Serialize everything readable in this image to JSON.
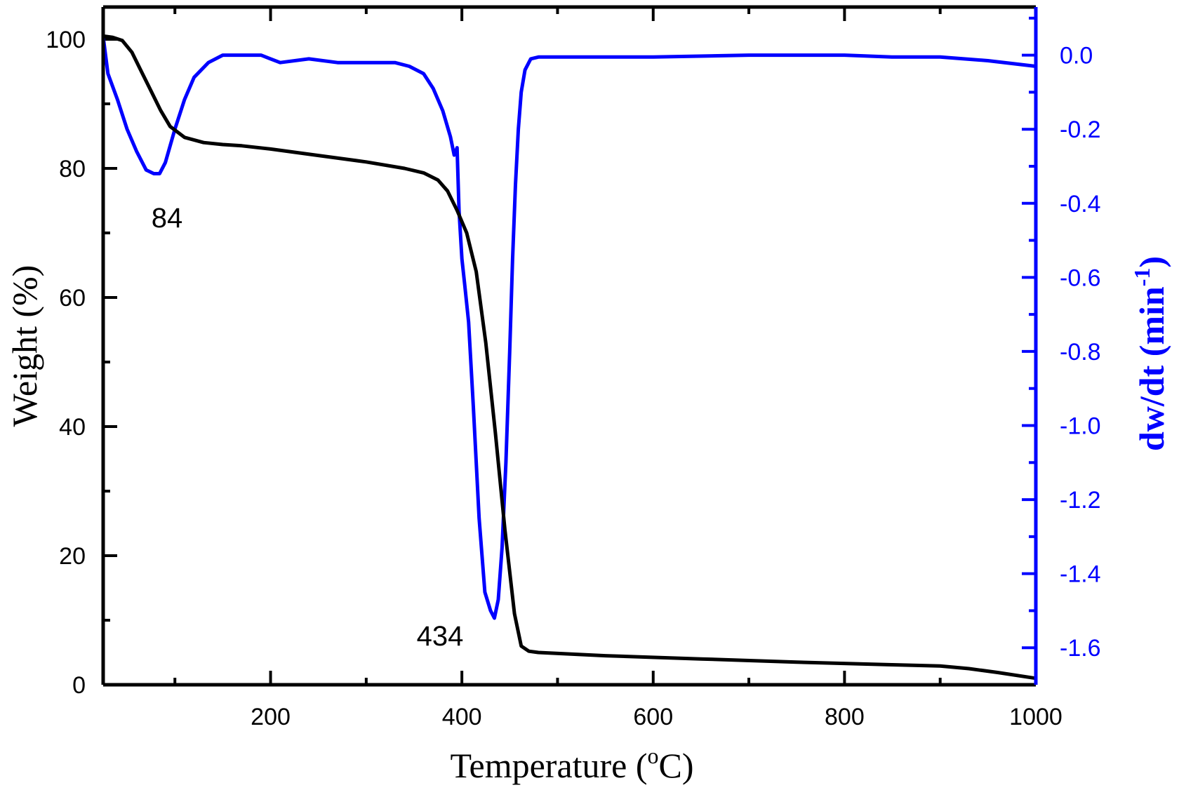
{
  "chart_data": {
    "type": "line",
    "title": "",
    "xlabel": "Temperature (",
    "xlabel_sup": "o",
    "xlabel_end": "C)",
    "ylabel_left": "Weight (%)",
    "ylabel_right": "dw/dt (min",
    "ylabel_right_sup": "-1",
    "ylabel_right_end": ")",
    "xlim": [
      25,
      1000
    ],
    "ylim_left": [
      0,
      105
    ],
    "ylim_right": [
      -1.7,
      0.13
    ],
    "grid": false,
    "x_ticks": [
      "200",
      "400",
      "600",
      "800",
      "1000"
    ],
    "x_tick_values": [
      200,
      400,
      600,
      800,
      1000
    ],
    "y_left_ticks": [
      "0",
      "20",
      "40",
      "60",
      "80",
      "100"
    ],
    "y_left_tick_values": [
      0,
      20,
      40,
      60,
      80,
      100
    ],
    "y_right_ticks": [
      "0.0",
      "-0.2",
      "-0.4",
      "-0.6",
      "-0.8",
      "-1.0",
      "-1.2",
      "-1.4",
      "-1.6"
    ],
    "y_right_tick_values": [
      0,
      -0.2,
      -0.4,
      -0.6,
      -0.8,
      -1.0,
      -1.2,
      -1.4,
      -1.6
    ],
    "colors": {
      "weight": "#000000",
      "dtg": "#0000ff"
    },
    "annotations": [
      {
        "text": "84",
        "x": 84,
        "series": "dtg"
      },
      {
        "text": "434",
        "x": 434,
        "series": "dtg"
      }
    ],
    "series": [
      {
        "axis": "left",
        "color": "#000000",
        "x": [
          25,
          35,
          45,
          55,
          65,
          75,
          85,
          95,
          110,
          130,
          150,
          170,
          200,
          250,
          300,
          340,
          360,
          375,
          385,
          395,
          405,
          415,
          425,
          435,
          445,
          455,
          462,
          470,
          480,
          550,
          650,
          750,
          850,
          900,
          930,
          960,
          1000
        ],
        "y": [
          100.5,
          100.3,
          99.8,
          98,
          95,
          92,
          89,
          86.5,
          84.8,
          84,
          83.7,
          83.5,
          83,
          82,
          81,
          80,
          79.3,
          78.2,
          76.5,
          73.5,
          70,
          64,
          53,
          39,
          24,
          11,
          6,
          5.2,
          5,
          4.5,
          4,
          3.5,
          3.1,
          2.9,
          2.5,
          1.9,
          1
        ]
      },
      {
        "axis": "right",
        "color": "#0000ff",
        "x": [
          25,
          30,
          40,
          50,
          60,
          70,
          78,
          84,
          90,
          100,
          110,
          120,
          135,
          150,
          170,
          190,
          210,
          240,
          270,
          300,
          330,
          345,
          360,
          370,
          380,
          388,
          392,
          395,
          397,
          400,
          403,
          407,
          412,
          418,
          424,
          430,
          434,
          438,
          442,
          446,
          450,
          453,
          456,
          459,
          462,
          466,
          472,
          480,
          520,
          600,
          700,
          800,
          850,
          900,
          950,
          1000
        ],
        "y": [
          0.05,
          -0.05,
          -0.12,
          -0.2,
          -0.26,
          -0.31,
          -0.32,
          -0.32,
          -0.29,
          -0.2,
          -0.12,
          -0.06,
          -0.02,
          0,
          0.0,
          0,
          -0.02,
          -0.01,
          -0.02,
          -0.02,
          -0.02,
          -0.03,
          -0.05,
          -0.09,
          -0.15,
          -0.22,
          -0.27,
          -0.25,
          -0.42,
          -0.55,
          -0.62,
          -0.72,
          -0.95,
          -1.25,
          -1.45,
          -1.5,
          -1.52,
          -1.47,
          -1.33,
          -1.1,
          -0.8,
          -0.55,
          -0.35,
          -0.2,
          -0.1,
          -0.04,
          -0.01,
          -0.005,
          -0.005,
          -0.005,
          0,
          0,
          -0.005,
          -0.005,
          -0.015,
          -0.03
        ]
      }
    ]
  }
}
